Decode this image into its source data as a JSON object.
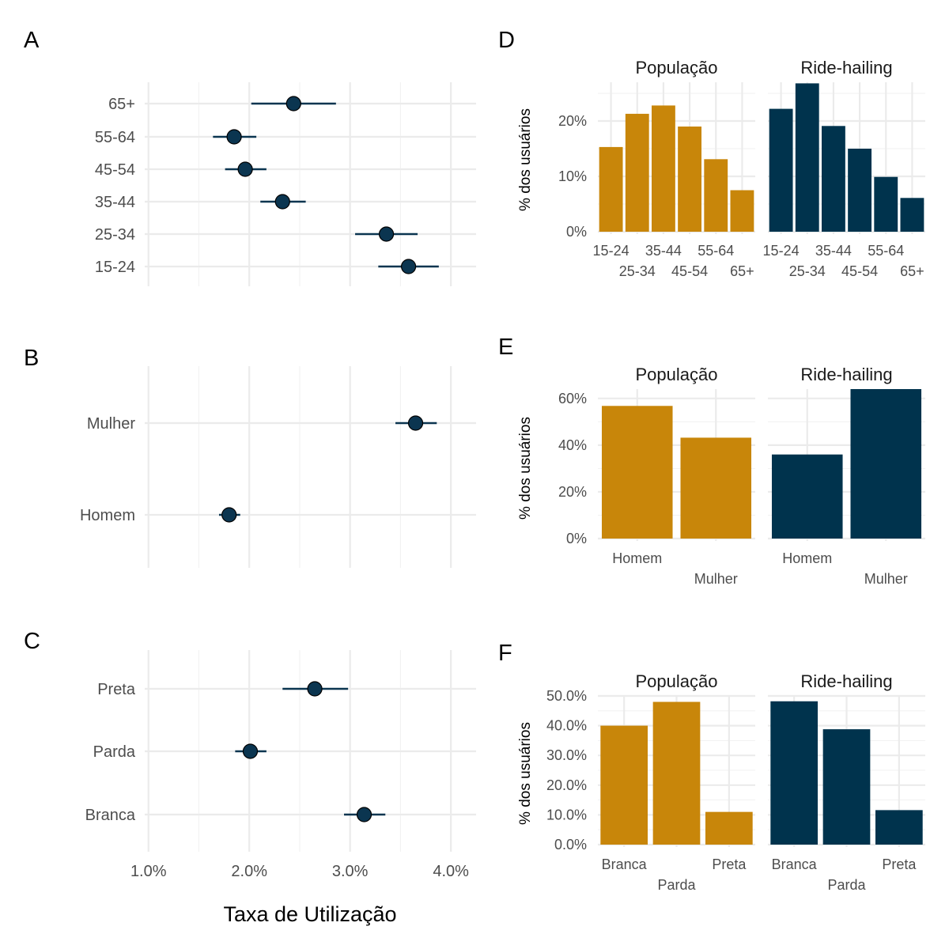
{
  "colors": {
    "population": "#C8860A",
    "ride_hailing": "#00334D",
    "point_fill": "#0B3550"
  },
  "x_axis_title": "Taxa de Utilização",
  "y_axis_title": "% dos usuários",
  "chart_data": [
    {
      "panel": "A",
      "type": "scatter",
      "subtype": "point-range",
      "categories": [
        "15-24",
        "25-34",
        "35-44",
        "45-54",
        "55-64",
        "65+"
      ],
      "estimate": [
        3.58,
        3.36,
        2.33,
        1.96,
        1.85,
        2.44
      ],
      "lower": [
        3.28,
        3.05,
        2.11,
        1.76,
        1.64,
        2.02
      ],
      "upper": [
        3.88,
        3.67,
        2.56,
        2.17,
        2.07,
        2.86
      ],
      "xlim": [
        0.9,
        4.25
      ],
      "x_ticks": [
        1,
        2,
        3,
        4
      ],
      "x_tick_labels": [
        "1.0%",
        "2.0%",
        "3.0%",
        "4.0%"
      ]
    },
    {
      "panel": "B",
      "type": "scatter",
      "subtype": "point-range",
      "categories": [
        "Homem",
        "Mulher"
      ],
      "estimate": [
        1.8,
        3.65
      ],
      "lower": [
        1.7,
        3.45
      ],
      "upper": [
        1.91,
        3.86
      ],
      "xlim": [
        0.9,
        4.25
      ],
      "x_ticks": [
        1,
        2,
        3,
        4
      ],
      "x_tick_labels": [
        "1.0%",
        "2.0%",
        "3.0%",
        "4.0%"
      ]
    },
    {
      "panel": "C",
      "type": "scatter",
      "subtype": "point-range",
      "categories": [
        "Branca",
        "Parda",
        "Preta"
      ],
      "estimate": [
        3.14,
        2.01,
        2.65
      ],
      "lower": [
        2.94,
        1.86,
        2.33
      ],
      "upper": [
        3.35,
        2.17,
        2.98
      ],
      "xlim": [
        0.9,
        4.25
      ],
      "x_ticks": [
        1,
        2,
        3,
        4
      ],
      "x_tick_labels": [
        "1.0%",
        "2.0%",
        "3.0%",
        "4.0%"
      ]
    },
    {
      "panel": "D",
      "type": "bar",
      "categories": [
        "15-24",
        "25-34",
        "35-44",
        "45-54",
        "55-64",
        "65+"
      ],
      "series": [
        {
          "name": "População",
          "values": [
            15.3,
            21.3,
            22.8,
            19.0,
            13.1,
            7.5
          ]
        },
        {
          "name": "Ride-hailing",
          "values": [
            22.2,
            26.8,
            19.1,
            15.0,
            9.9,
            6.1
          ]
        }
      ],
      "ylim": [
        0,
        27
      ],
      "y_ticks": [
        0,
        10,
        20
      ],
      "y_tick_labels": [
        "0%",
        "10%",
        "20%"
      ]
    },
    {
      "panel": "E",
      "type": "bar",
      "categories": [
        "Homem",
        "Mulher"
      ],
      "series": [
        {
          "name": "População",
          "values": [
            56.8,
            43.2
          ]
        },
        {
          "name": "Ride-hailing",
          "values": [
            36.0,
            64.0
          ]
        }
      ],
      "ylim": [
        0,
        64
      ],
      "y_ticks": [
        0,
        20,
        40,
        60
      ],
      "y_tick_labels": [
        "0%",
        "20%",
        "40%",
        "60%"
      ]
    },
    {
      "panel": "F",
      "type": "bar",
      "categories": [
        "Branca",
        "Parda",
        "Preta"
      ],
      "series": [
        {
          "name": "População",
          "values": [
            40.0,
            48.0,
            11.0
          ]
        },
        {
          "name": "Ride-hailing",
          "values": [
            48.2,
            38.8,
            11.6
          ]
        }
      ],
      "ylim": [
        0,
        50
      ],
      "y_ticks": [
        0,
        10,
        20,
        30,
        40,
        50
      ],
      "y_tick_labels": [
        "0.0%",
        "10.0%",
        "20.0%",
        "30.0%",
        "40.0%",
        "50.0%"
      ]
    }
  ]
}
